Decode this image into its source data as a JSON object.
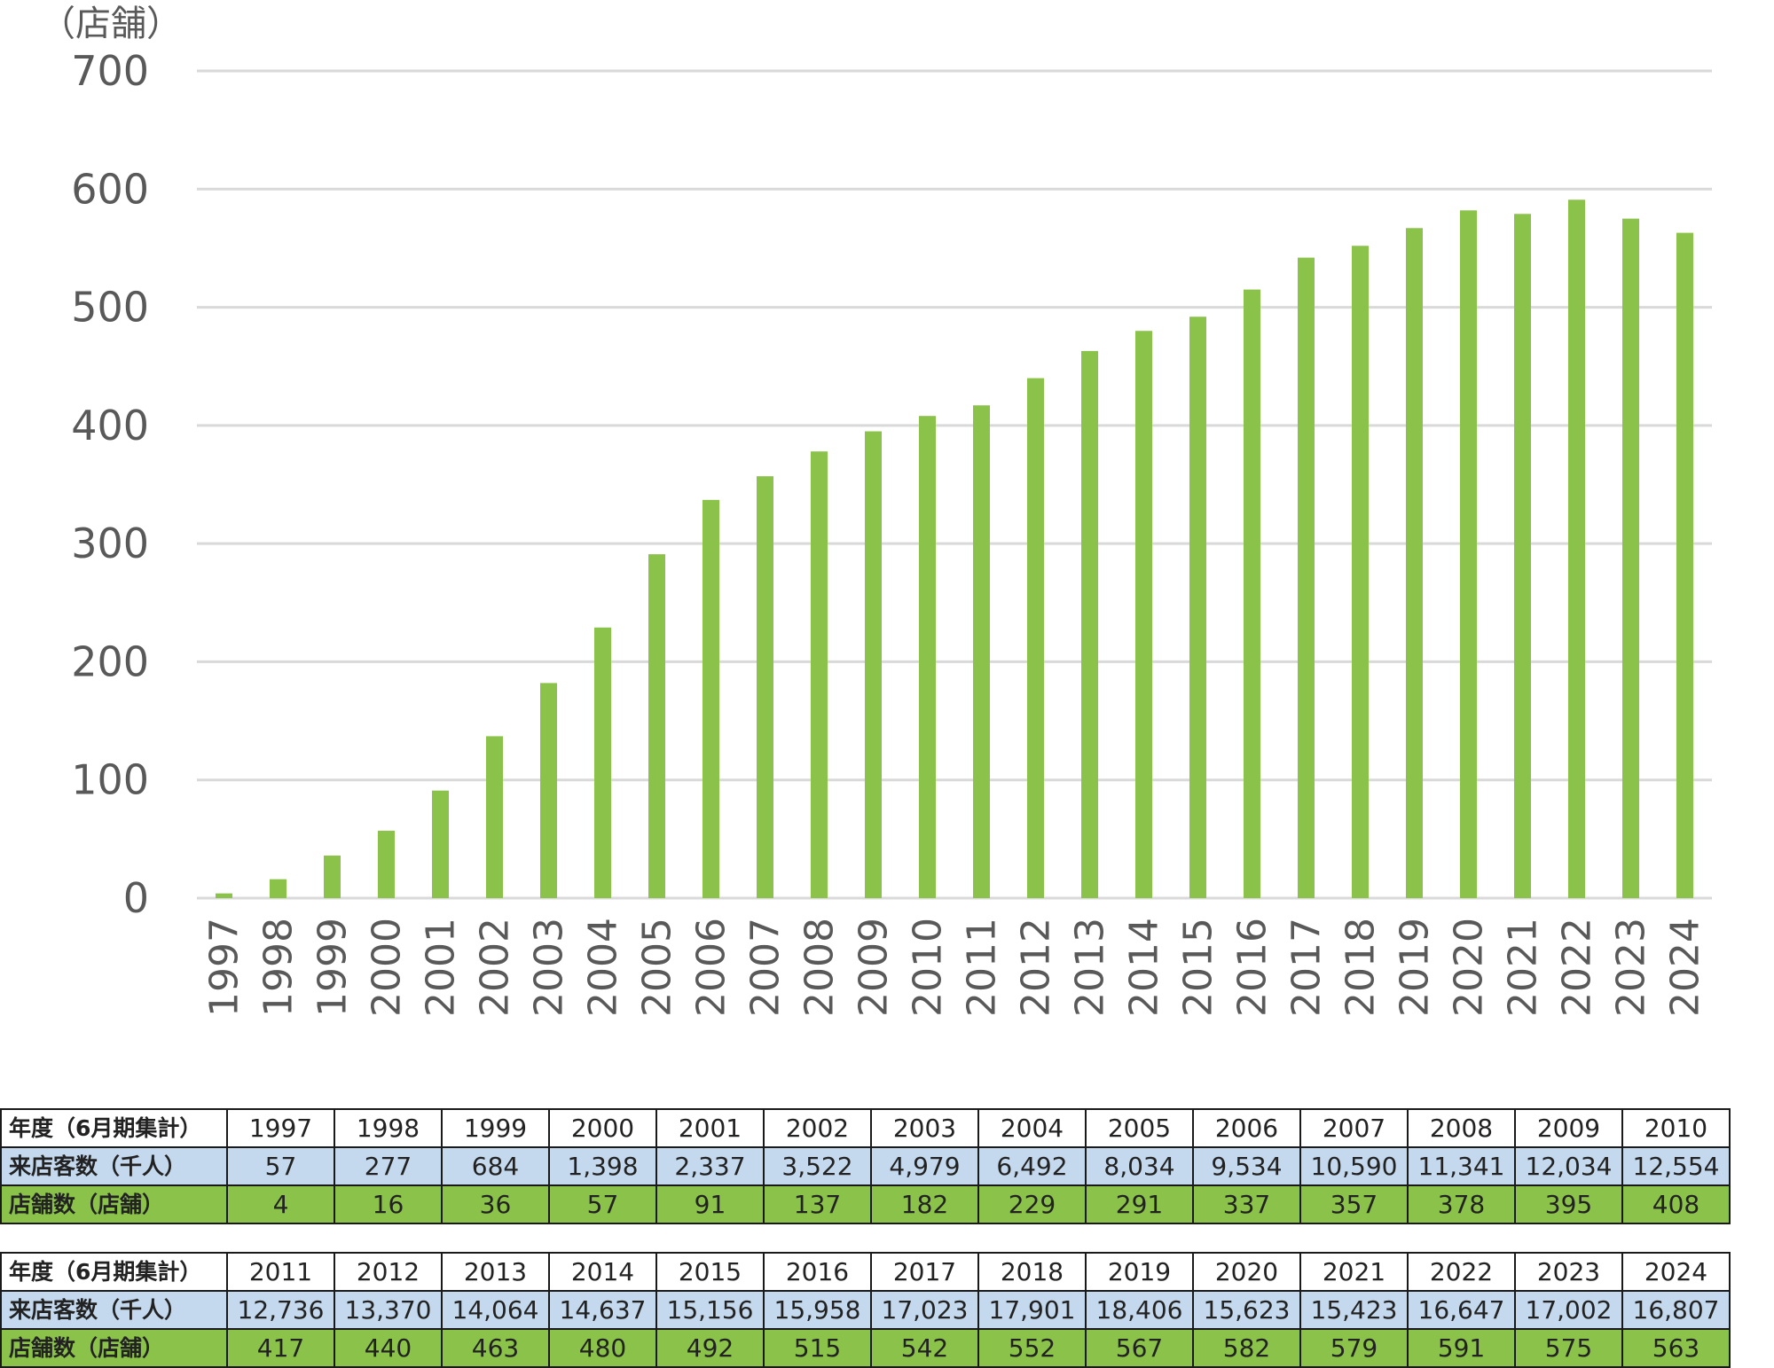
{
  "chart_data": {
    "type": "bar",
    "y_unit_label": "（店舗）",
    "ylim": [
      0,
      700
    ],
    "yticks": [
      0,
      100,
      200,
      300,
      400,
      500,
      600,
      700
    ],
    "grid": true,
    "bar_color": "#8bc34a",
    "grid_color": "#d9d9d9",
    "categories": [
      "1997",
      "1998",
      "1999",
      "2000",
      "2001",
      "2002",
      "2003",
      "2004",
      "2005",
      "2006",
      "2007",
      "2008",
      "2009",
      "2010",
      "2011",
      "2012",
      "2013",
      "2014",
      "2015",
      "2016",
      "2017",
      "2018",
      "2019",
      "2020",
      "2021",
      "2022",
      "2023",
      "2024"
    ],
    "values": [
      4,
      16,
      36,
      57,
      91,
      137,
      182,
      229,
      291,
      337,
      357,
      378,
      395,
      408,
      417,
      440,
      463,
      480,
      492,
      515,
      542,
      552,
      567,
      582,
      579,
      591,
      575,
      563
    ]
  },
  "tables": [
    {
      "year_header": "年度（6月期集計）",
      "visitors_header": "来店客数（千人）",
      "stores_header": "店舗数（店舗）",
      "years": [
        "1997",
        "1998",
        "1999",
        "2000",
        "2001",
        "2002",
        "2003",
        "2004",
        "2005",
        "2006",
        "2007",
        "2008",
        "2009",
        "2010"
      ],
      "visitors": [
        "57",
        "277",
        "684",
        "1,398",
        "2,337",
        "3,522",
        "4,979",
        "6,492",
        "8,034",
        "9,534",
        "10,590",
        "11,341",
        "12,034",
        "12,554"
      ],
      "stores": [
        "4",
        "16",
        "36",
        "57",
        "91",
        "137",
        "182",
        "229",
        "291",
        "337",
        "357",
        "378",
        "395",
        "408"
      ]
    },
    {
      "year_header": "年度（6月期集計）",
      "visitors_header": "来店客数（千人）",
      "stores_header": "店舗数（店舗）",
      "years": [
        "2011",
        "2012",
        "2013",
        "2014",
        "2015",
        "2016",
        "2017",
        "2018",
        "2019",
        "2020",
        "2021",
        "2022",
        "2023",
        "2024"
      ],
      "visitors": [
        "12,736",
        "13,370",
        "14,064",
        "14,637",
        "15,156",
        "15,958",
        "17,023",
        "17,901",
        "18,406",
        "15,623",
        "15,423",
        "16,647",
        "17,002",
        "16,807"
      ],
      "stores": [
        "417",
        "440",
        "463",
        "480",
        "492",
        "515",
        "542",
        "552",
        "567",
        "582",
        "579",
        "591",
        "575",
        "563"
      ]
    }
  ],
  "colors": {
    "visitors_row": "#c5d9ee",
    "stores_row": "#8bc34a",
    "border": "#1a1a1a"
  }
}
